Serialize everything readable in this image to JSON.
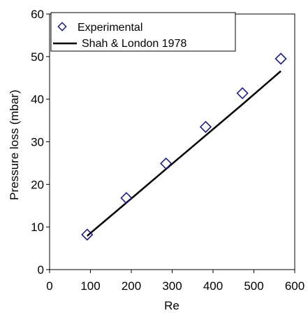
{
  "chart_data": {
    "type": "scatter",
    "xlabel": "Re",
    "ylabel": "Pressure loss (mbar)",
    "xlim": [
      0,
      600
    ],
    "ylim": [
      0,
      60
    ],
    "xticks": [
      "0",
      "100",
      "200",
      "300",
      "400",
      "500",
      "600"
    ],
    "yticks": [
      "0",
      "10",
      "20",
      "30",
      "40",
      "50",
      "60"
    ],
    "grid": false,
    "legend_position": "top-left",
    "series": [
      {
        "name": "Experimental",
        "kind": "scatter",
        "marker": "diamond-open",
        "color": "#1f1f7a",
        "x": [
          92,
          188,
          285,
          382,
          472,
          566
        ],
        "y": [
          8.2,
          16.8,
          24.9,
          33.5,
          41.4,
          49.5
        ]
      },
      {
        "name": "Shah & London 1978",
        "kind": "line",
        "color": "#000000",
        "x": [
          92,
          188,
          285,
          382,
          472,
          566
        ],
        "y": [
          7.9,
          15.7,
          23.6,
          31.5,
          38.8,
          46.6
        ]
      }
    ]
  }
}
